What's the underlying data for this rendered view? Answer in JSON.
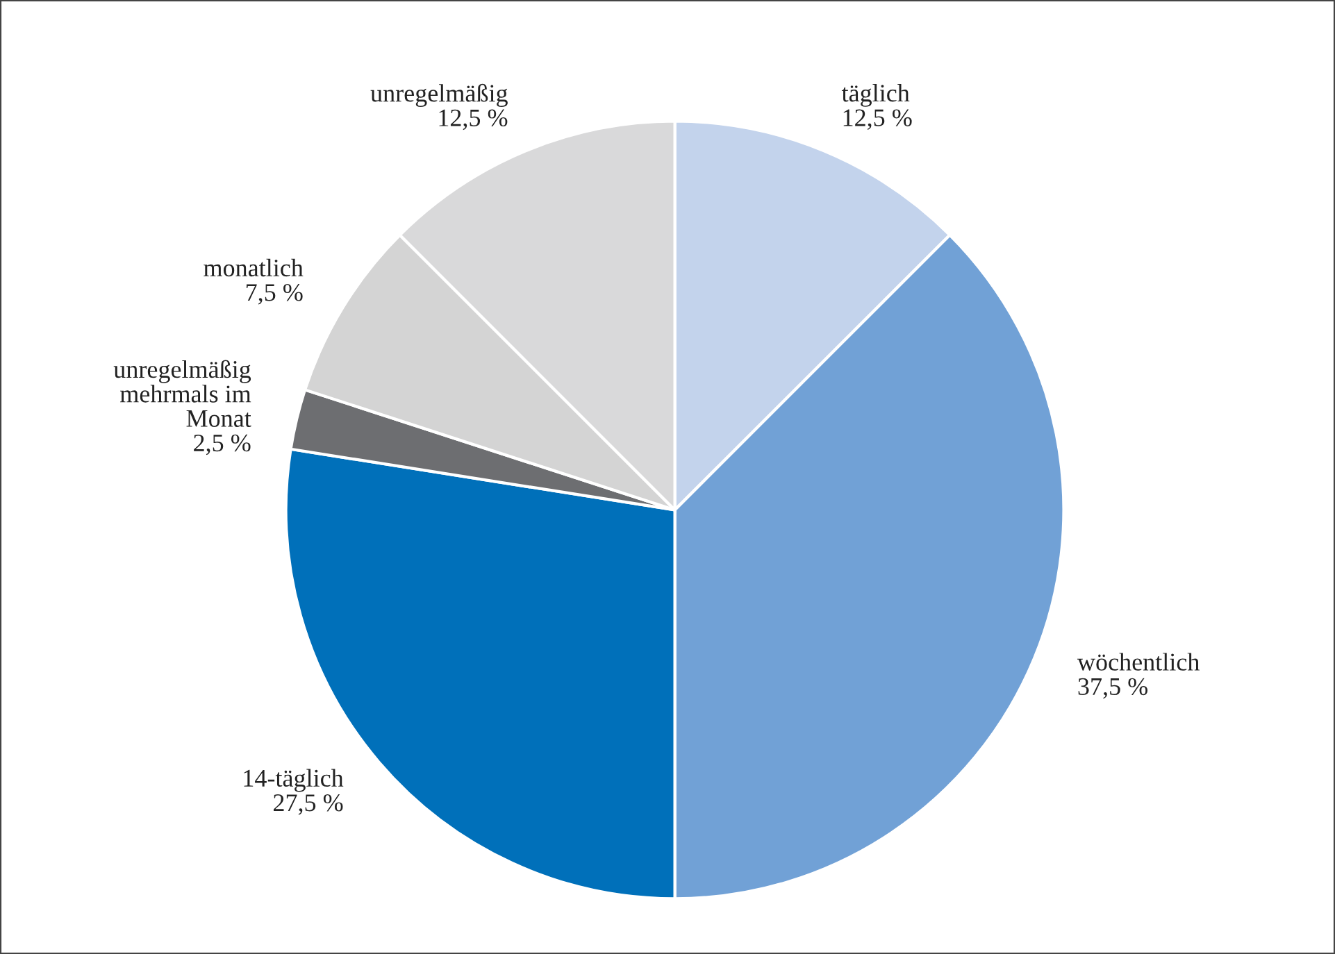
{
  "chart_data": {
    "type": "pie",
    "categories": [
      "täglich",
      "wöchentlich",
      "14-täglich",
      "unregelmäßig\nmehrmals im\nMonat",
      "monatlich",
      "unregelmäßig"
    ],
    "values": [
      12.5,
      37.5,
      27.5,
      2.5,
      7.5,
      12.5
    ],
    "value_labels": [
      "12,5 %",
      "37,5 %",
      "27,5 %",
      "2,5 %",
      "7,5 %",
      "12,5 %"
    ],
    "colors": [
      "#c3d3ec",
      "#71a1d6",
      "#0070ba",
      "#6d6e71",
      "#d4d4d4",
      "#d9d9da"
    ]
  }
}
